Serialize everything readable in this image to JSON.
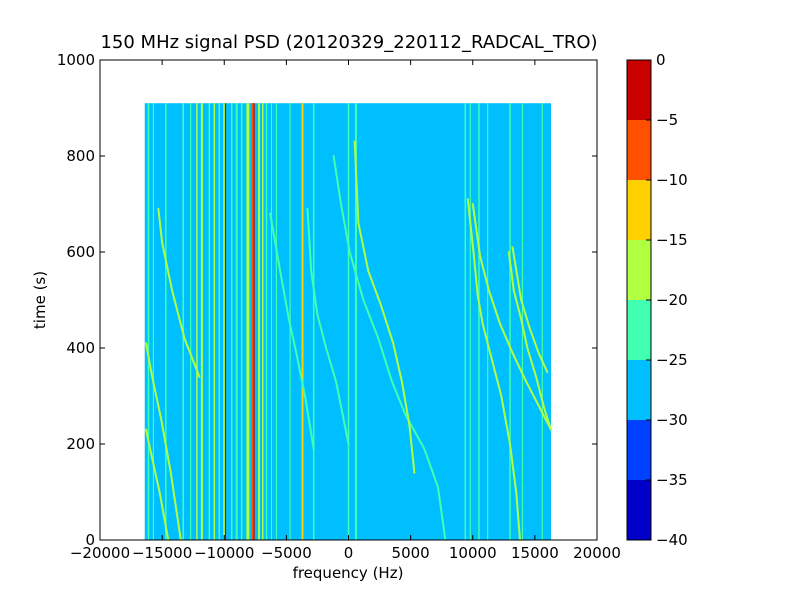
{
  "chart_data": {
    "type": "heatmap",
    "title": "150 MHz signal PSD (20120329_220112_RADCAL_TRO)",
    "xlabel": "frequency (Hz)",
    "ylabel": "time (s)",
    "xlim": [
      -20000,
      20000
    ],
    "ylim": [
      0,
      1000
    ],
    "x_ticks": [
      -20000,
      -15000,
      -10000,
      -5000,
      0,
      5000,
      10000,
      15000,
      20000
    ],
    "x_tick_labels": [
      "−20000",
      "−15000",
      "−10000",
      "−5000",
      "0",
      "5000",
      "10000",
      "15000",
      "20000"
    ],
    "y_ticks": [
      0,
      200,
      400,
      600,
      800,
      1000
    ],
    "y_tick_labels": [
      "0",
      "200",
      "400",
      "600",
      "800",
      "1000"
    ],
    "data_extent": {
      "x": [
        -16400,
        16300
      ],
      "y": [
        0,
        910
      ]
    },
    "background_level": -27.5,
    "colorbar": {
      "levels": [
        -40,
        -35,
        -30,
        -25,
        -20,
        -15,
        -10,
        -5,
        0
      ],
      "tick_labels": [
        "−40",
        "−35",
        "−30",
        "−25",
        "−20",
        "−15",
        "−10",
        "−5",
        "0"
      ],
      "colors": [
        "#0000c8",
        "#0040ff",
        "#00bfff",
        "#40ffb0",
        "#b0ff40",
        "#ffd000",
        "#ff5000",
        "#c80000"
      ]
    },
    "vertical_lines": [
      {
        "freq": -16100,
        "level": -22,
        "width": 120
      },
      {
        "freq": -15700,
        "level": -22,
        "width": 90
      },
      {
        "freq": -14700,
        "level": -22,
        "width": 120
      },
      {
        "freq": -13300,
        "level": -22,
        "width": 120
      },
      {
        "freq": -12700,
        "level": -22,
        "width": 90
      },
      {
        "freq": -12200,
        "level": -17,
        "width": 120
      },
      {
        "freq": -11800,
        "level": -17,
        "width": 160
      },
      {
        "freq": -11200,
        "level": -22,
        "width": 120
      },
      {
        "freq": -10800,
        "level": -17,
        "width": 120
      },
      {
        "freq": -10400,
        "level": -22,
        "width": 120
      },
      {
        "freq": -10000,
        "level": -17,
        "width": 160
      },
      {
        "freq": -9900,
        "level": -2,
        "width": 60
      },
      {
        "freq": -9400,
        "level": -22,
        "width": 120
      },
      {
        "freq": -9000,
        "level": -22,
        "width": 160
      },
      {
        "freq": -8600,
        "level": -22,
        "width": 120
      },
      {
        "freq": -8100,
        "level": -17,
        "width": 240
      },
      {
        "freq": -7700,
        "level": -7,
        "width": 200
      },
      {
        "freq": -7600,
        "level": -2,
        "width": 80
      },
      {
        "freq": -7200,
        "level": -17,
        "width": 160
      },
      {
        "freq": -6900,
        "level": -17,
        "width": 120
      },
      {
        "freq": -6600,
        "level": -22,
        "width": 120
      },
      {
        "freq": -6200,
        "level": -22,
        "width": 90
      },
      {
        "freq": -5800,
        "level": -22,
        "width": 90
      },
      {
        "freq": -4700,
        "level": -22,
        "width": 90
      },
      {
        "freq": -3700,
        "level": -12,
        "width": 160
      },
      {
        "freq": -2800,
        "level": -22,
        "width": 120
      },
      {
        "freq": 0,
        "level": -22,
        "width": 120
      },
      {
        "freq": 600,
        "level": -22,
        "width": 160
      },
      {
        "freq": 9400,
        "level": -22,
        "width": 120
      },
      {
        "freq": 9800,
        "level": -22,
        "width": 90
      },
      {
        "freq": 10500,
        "level": -22,
        "width": 120
      },
      {
        "freq": 11200,
        "level": -22,
        "width": 90
      },
      {
        "freq": 13000,
        "level": -22,
        "width": 120
      },
      {
        "freq": 14000,
        "level": -22,
        "width": 90
      },
      {
        "freq": 15600,
        "level": -22,
        "width": 90
      }
    ],
    "curved_traces": [
      {
        "level": -17,
        "points": [
          [
            -16300,
            410
          ],
          [
            -15800,
            340
          ],
          [
            -15100,
            255
          ],
          [
            -14300,
            140
          ],
          [
            -13500,
            0
          ]
        ]
      },
      {
        "level": -17,
        "points": [
          [
            -16300,
            230
          ],
          [
            -15800,
            170
          ],
          [
            -15200,
            100
          ],
          [
            -14500,
            0
          ]
        ]
      },
      {
        "level": -17,
        "points": [
          [
            -15300,
            690
          ],
          [
            -15000,
            620
          ],
          [
            -14200,
            520
          ],
          [
            -13200,
            420
          ],
          [
            -12000,
            340
          ]
        ]
      },
      {
        "level": -22,
        "points": [
          [
            -6300,
            680
          ],
          [
            -5500,
            560
          ],
          [
            -4800,
            460
          ],
          [
            -4200,
            390
          ],
          [
            -3500,
            300
          ],
          [
            -2800,
            190
          ]
        ]
      },
      {
        "level": -22,
        "points": [
          [
            -3300,
            690
          ],
          [
            -3000,
            560
          ],
          [
            -2500,
            470
          ],
          [
            -1800,
            400
          ],
          [
            -1000,
            330
          ],
          [
            0,
            200
          ]
        ]
      },
      {
        "level": -22,
        "points": [
          [
            -1200,
            800
          ],
          [
            -600,
            700
          ],
          [
            100,
            600
          ],
          [
            1200,
            500
          ],
          [
            2400,
            420
          ],
          [
            3500,
            330
          ],
          [
            4600,
            260
          ],
          [
            6100,
            190
          ],
          [
            7200,
            110
          ],
          [
            7800,
            0
          ]
        ]
      },
      {
        "level": -17,
        "points": [
          [
            500,
            830
          ],
          [
            800,
            660
          ],
          [
            1600,
            560
          ],
          [
            2600,
            490
          ],
          [
            3600,
            410
          ],
          [
            4300,
            330
          ],
          [
            4900,
            240
          ],
          [
            5300,
            140
          ]
        ]
      },
      {
        "level": -17,
        "points": [
          [
            9600,
            710
          ],
          [
            10100,
            590
          ],
          [
            10400,
            510
          ],
          [
            10800,
            450
          ],
          [
            11500,
            380
          ],
          [
            12300,
            300
          ],
          [
            13000,
            200
          ],
          [
            13500,
            100
          ],
          [
            13800,
            0
          ]
        ]
      },
      {
        "level": -17,
        "points": [
          [
            10000,
            700
          ],
          [
            10600,
            590
          ],
          [
            11300,
            520
          ],
          [
            12200,
            450
          ],
          [
            13200,
            390
          ],
          [
            14300,
            330
          ],
          [
            15300,
            280
          ],
          [
            16300,
            230
          ]
        ]
      },
      {
        "level": -17,
        "points": [
          [
            12900,
            600
          ],
          [
            13300,
            520
          ],
          [
            13900,
            460
          ],
          [
            14400,
            400
          ],
          [
            15100,
            340
          ],
          [
            15800,
            270
          ],
          [
            16300,
            230
          ]
        ]
      },
      {
        "level": -17,
        "points": [
          [
            13200,
            610
          ],
          [
            13900,
            500
          ],
          [
            14600,
            440
          ],
          [
            15300,
            390
          ],
          [
            16000,
            350
          ]
        ]
      }
    ]
  }
}
